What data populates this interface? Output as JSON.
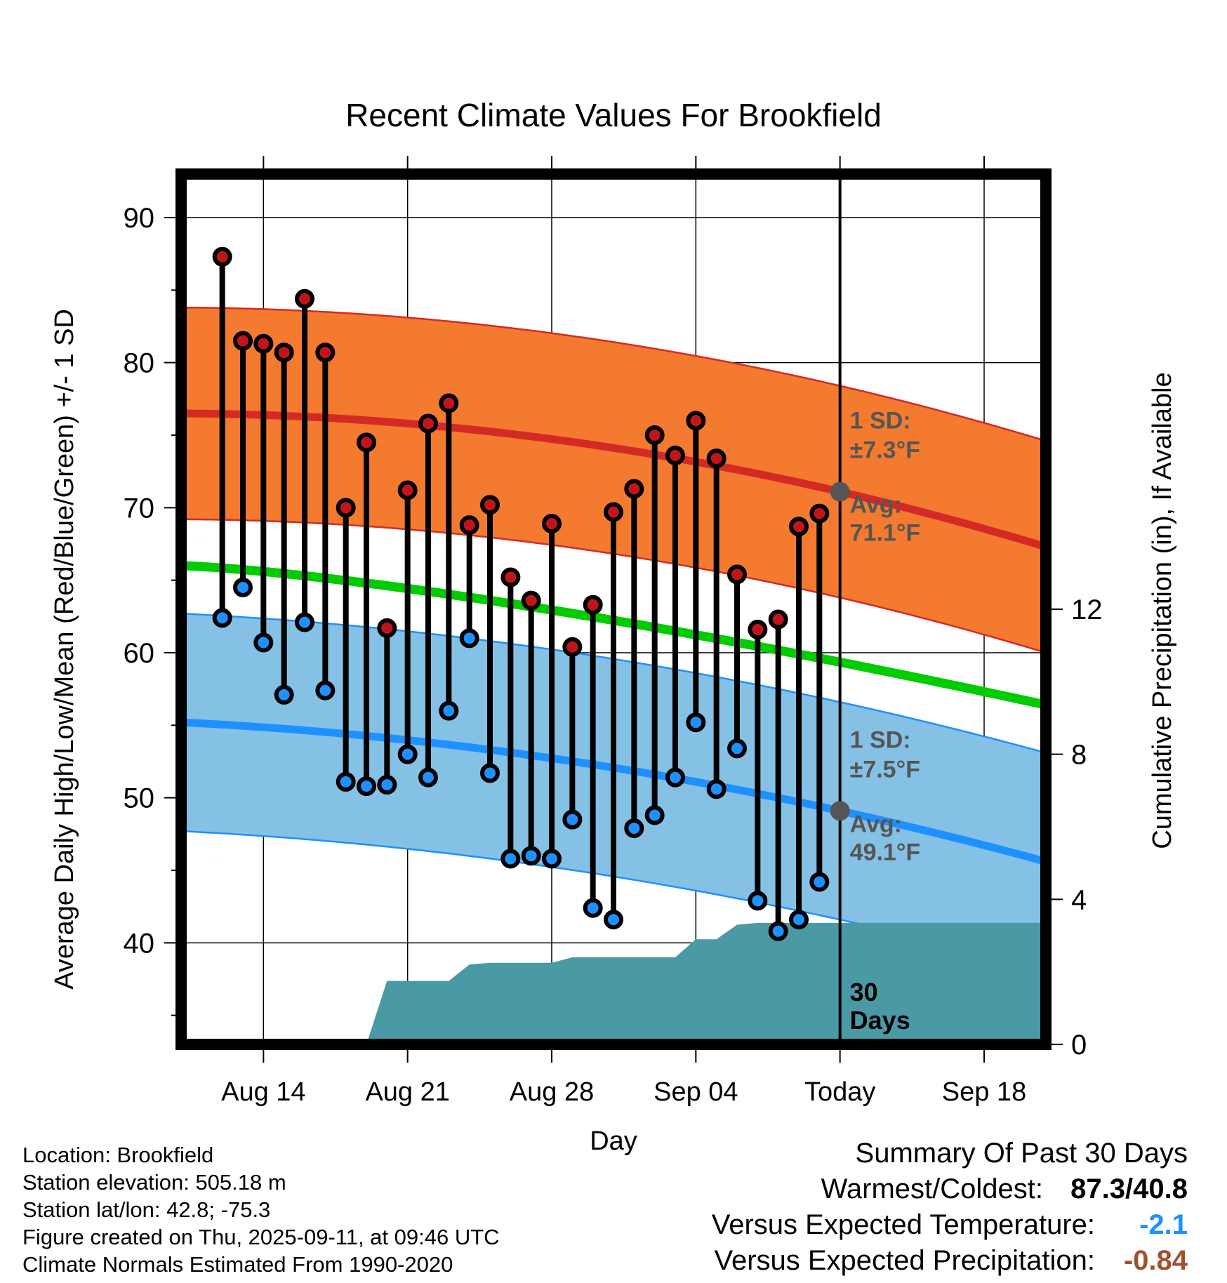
{
  "chart_data": {
    "type": "line",
    "title": "Recent Climate Values For Brookfield",
    "xlabel": "Day",
    "ylabel": "Average Daily High/Low/Mean (Red/Blue/Green) +/- 1 SD",
    "y2label": "Cumulative Precipitation (in), If Available",
    "ylim": [
      33,
      93
    ],
    "y2lim": [
      0,
      24
    ],
    "yticks": [
      "90",
      "80",
      "70",
      "60",
      "50",
      "40"
    ],
    "y2ticks": [
      "12",
      "8",
      "4",
      "0"
    ],
    "xticks": [
      "Aug 14",
      "Aug 21",
      "Aug 28",
      "Sep 04",
      "Today",
      "Sep 18"
    ],
    "xlim": [
      "Aug 10",
      "Sep 21"
    ],
    "grid": true,
    "today_label": "30\nDays",
    "days": [
      "Aug 12",
      "Aug 13",
      "Aug 14",
      "Aug 15",
      "Aug 16",
      "Aug 17",
      "Aug 18",
      "Aug 19",
      "Aug 20",
      "Aug 21",
      "Aug 22",
      "Aug 23",
      "Aug 24",
      "Aug 25",
      "Aug 26",
      "Aug 27",
      "Aug 28",
      "Aug 29",
      "Aug 30",
      "Aug 31",
      "Sep 01",
      "Sep 02",
      "Sep 03",
      "Sep 04",
      "Sep 05",
      "Sep 06",
      "Sep 07",
      "Sep 08",
      "Sep 09",
      "Sep 10"
    ],
    "highs": [
      87.3,
      81.5,
      81.3,
      80.7,
      84.4,
      80.7,
      70.0,
      74.5,
      61.7,
      71.2,
      75.8,
      77.2,
      68.8,
      70.2,
      65.2,
      63.6,
      68.9,
      60.4,
      63.3,
      69.7,
      71.3,
      75.0,
      73.6,
      76.0,
      73.4,
      65.4,
      61.6,
      62.3,
      68.7,
      69.6
    ],
    "lows": [
      62.4,
      64.5,
      60.7,
      57.1,
      62.1,
      57.4,
      51.1,
      50.8,
      50.9,
      53.0,
      51.4,
      56.0,
      61.0,
      51.7,
      45.8,
      46.0,
      45.8,
      48.5,
      42.4,
      41.6,
      47.9,
      48.8,
      51.4,
      55.2,
      50.6,
      53.4,
      42.9,
      40.8,
      41.6,
      44.2
    ],
    "normal_high": {
      "start": 76.5,
      "today": 71.1,
      "end": 67.3
    },
    "normal_high_sd": "±7.3",
    "normal_low": {
      "start": 55.2,
      "today": 49.1,
      "end": 45.6
    },
    "normal_low_sd": "±7.5",
    "normal_mean": {
      "start": 66.0,
      "end": 56.4
    },
    "precip_days": [
      "Aug 18",
      "Aug 19",
      "Aug 20",
      "Aug 22",
      "Aug 23",
      "Aug 24",
      "Aug 25",
      "Aug 28",
      "Aug 29",
      "Sep 02",
      "Sep 03",
      "Sep 04",
      "Sep 05",
      "Sep 06",
      "Sep 07"
    ],
    "precip_cumulative": [
      0.0,
      0.0,
      1.75,
      1.75,
      1.75,
      2.2,
      2.25,
      2.25,
      2.4,
      2.4,
      2.4,
      2.9,
      2.9,
      3.3,
      3.35
    ],
    "precip_total": 3.35,
    "annotations": {
      "high_sd_label": "1 SD:",
      "high_sd_value": "±7.3°F",
      "high_avg_label": "Avg:",
      "high_avg_value": "71.1°F",
      "low_sd_label": "1 SD:",
      "low_sd_value": "±7.5°F",
      "low_avg_label": "Avg:",
      "low_avg_value": "49.1°F"
    },
    "colors": {
      "high_band": "#f47a30",
      "high_line": "#d42a25",
      "low_band": "#85c1e5",
      "low_line": "#1e90ff",
      "mean_line": "#00cc00",
      "precip": "#4a9aa5",
      "high_dot": "#c0161b",
      "low_dot": "#1e90ff",
      "avg_dot": "#555555"
    }
  },
  "footer": {
    "location": "Location: Brookfield",
    "elevation": "Station elevation: 505.18 m",
    "latlon": "Station lat/lon: 42.8; -75.3",
    "created": "Figure created on Thu, 2025-09-11, at 09:46 UTC",
    "normals": "Climate Normals Estimated From 1990-2020"
  },
  "summary": {
    "title": "Summary Of Past 30 Days",
    "warm_cold_label": "Warmest/Coldest:",
    "warm_cold_value": "87.3/40.8",
    "temp_label": "Versus Expected Temperature:",
    "temp_value": "-2.1",
    "temp_color": "#1e90ff",
    "precip_label": "Versus Expected Precipitation:",
    "precip_value": "-0.84",
    "precip_color": "#a0522d"
  }
}
